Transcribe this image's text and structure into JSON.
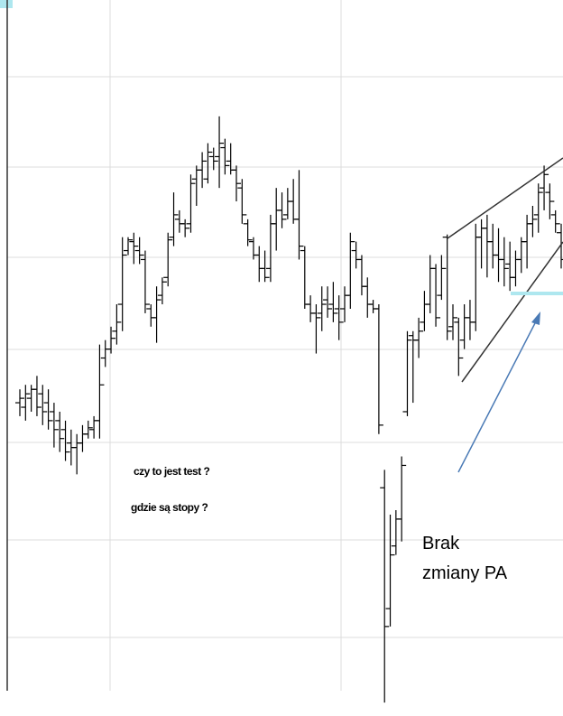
{
  "chart_data": {
    "type": "ohlc",
    "color": "#000000",
    "ylim": [
      0,
      800
    ],
    "open": [
      350,
      345,
      355,
      365,
      360,
      350,
      340,
      330,
      320,
      305,
      300,
      305,
      315,
      320,
      330,
      400,
      410,
      430,
      460,
      520,
      530,
      520,
      510,
      455,
      445,
      470,
      490,
      535,
      555,
      550,
      550,
      600,
      610,
      600,
      625,
      625,
      635,
      620,
      610,
      590,
      550,
      530,
      515,
      500,
      500,
      550,
      565,
      560,
      575,
      555,
      520,
      460,
      450,
      450,
      465,
      460,
      455,
      455,
      470,
      520,
      510,
      480,
      460,
      455,
      255,
      120,
      190,
      220,
      340,
      425,
      420,
      440,
      460,
      500,
      470,
      535,
      435,
      440,
      420,
      445,
      440,
      535,
      545,
      530,
      515,
      510,
      505,
      490,
      510,
      530,
      550,
      560,
      590,
      585,
      560,
      540
    ],
    "high": [
      365,
      370,
      370,
      380,
      370,
      365,
      350,
      340,
      330,
      320,
      315,
      325,
      330,
      335,
      415,
      420,
      435,
      460,
      535,
      535,
      540,
      535,
      520,
      460,
      480,
      490,
      540,
      585,
      565,
      555,
      605,
      615,
      630,
      640,
      635,
      670,
      645,
      640,
      615,
      600,
      555,
      535,
      525,
      520,
      560,
      590,
      585,
      590,
      600,
      610,
      525,
      470,
      460,
      480,
      480,
      485,
      470,
      480,
      540,
      530,
      515,
      490,
      465,
      460,
      275,
      225,
      230,
      290,
      430,
      430,
      445,
      475,
      515,
      505,
      515,
      538,
      460,
      445,
      460,
      465,
      550,
      555,
      560,
      550,
      545,
      535,
      530,
      520,
      535,
      560,
      570,
      595,
      615,
      595,
      565,
      550
    ],
    "low": [
      335,
      330,
      340,
      335,
      325,
      320,
      300,
      295,
      285,
      280,
      270,
      295,
      310,
      310,
      310,
      390,
      405,
      415,
      430,
      515,
      505,
      505,
      450,
      435,
      417,
      460,
      480,
      525,
      540,
      535,
      540,
      570,
      590,
      595,
      610,
      590,
      605,
      605,
      575,
      550,
      525,
      510,
      485,
      485,
      485,
      520,
      545,
      555,
      550,
      510,
      455,
      440,
      405,
      430,
      445,
      440,
      420,
      440,
      455,
      500,
      470,
      445,
      450,
      315,
      15,
      100,
      180,
      195,
      335,
      350,
      400,
      430,
      450,
      435,
      465,
      420,
      420,
      380,
      410,
      420,
      430,
      500,
      490,
      500,
      485,
      480,
      475,
      480,
      495,
      500,
      535,
      540,
      565,
      555,
      540,
      500
    ],
    "close": [
      355,
      360,
      365,
      345,
      340,
      330,
      320,
      310,
      295,
      300,
      305,
      315,
      322,
      330,
      370,
      410,
      422,
      440,
      515,
      532,
      525,
      515,
      460,
      445,
      465,
      485,
      532,
      560,
      550,
      545,
      595,
      610,
      620,
      630,
      620,
      640,
      615,
      610,
      595,
      560,
      532,
      515,
      500,
      490,
      550,
      565,
      555,
      575,
      555,
      525,
      460,
      450,
      445,
      460,
      455,
      450,
      440,
      470,
      530,
      510,
      480,
      460,
      455,
      325,
      100,
      180,
      220,
      280,
      420,
      420,
      430,
      460,
      500,
      445,
      500,
      430,
      445,
      400,
      445,
      440,
      535,
      545,
      530,
      515,
      510,
      500,
      490,
      510,
      530,
      550,
      555,
      585,
      605,
      575,
      550,
      510
    ],
    "annotations": [
      "czy to jest test ?",
      "gdzie są stopy ?",
      "Brak",
      "zmiany PA"
    ]
  }
}
